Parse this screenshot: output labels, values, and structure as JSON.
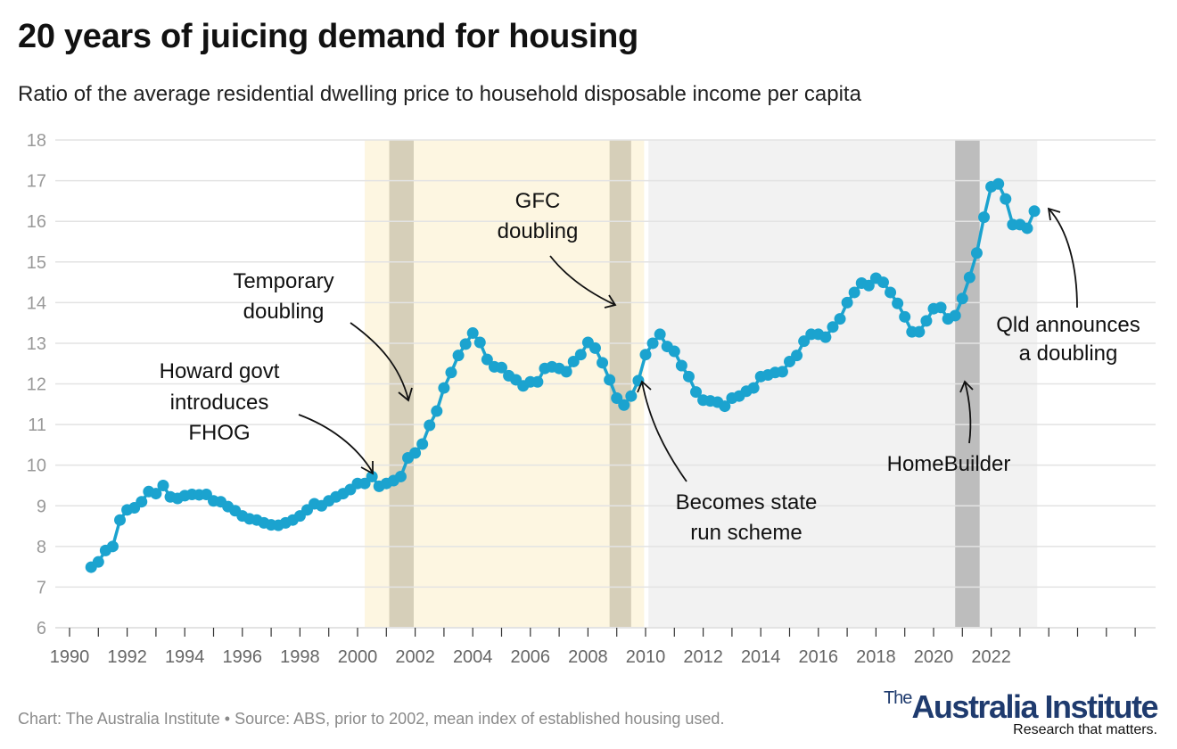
{
  "title": "20 years of juicing demand for housing",
  "subtitle": "Ratio of the average residential dwelling price to household disposable income per capita",
  "footer": "Chart: The Australia Institute  • Source: ABS, prior to 2002, mean index of established housing used.",
  "logo": {
    "the": "The",
    "brand": "Australia Institute",
    "tagline": "Research that matters."
  },
  "colors": {
    "line": "#1ba3cf",
    "fhog_band": "#fdf6e1",
    "doubling_band": "#d6cfb9",
    "state_band": "#f2f2f2",
    "homebuilder_band": "#bdbdbd",
    "grid": "#e3e3e3",
    "tick_label": "#999999"
  },
  "chart_data": {
    "type": "line",
    "title": "20 years of juicing demand for housing",
    "subtitle": "Ratio of the average residential dwelling price to household disposable income per capita",
    "xlim": [
      1989.5,
      2027
    ],
    "ylim": [
      6,
      18
    ],
    "x_ticks": [
      "1990",
      "1992",
      "1994",
      "1996",
      "1998",
      "2000",
      "2002",
      "2004",
      "2006",
      "2008",
      "2010",
      "2012",
      "2014",
      "2016",
      "2018",
      "2020",
      "2022"
    ],
    "y_ticks": [
      "6",
      "7",
      "8",
      "9",
      "10",
      "11",
      "12",
      "13",
      "14",
      "15",
      "16",
      "17",
      "18"
    ],
    "grid": true,
    "markers": true,
    "series": [
      {
        "x_start_label": "1990 Q3",
        "values": [
          7.49,
          7.62,
          7.9,
          8.0,
          8.65,
          8.9,
          8.95,
          9.1,
          9.35,
          9.3,
          9.5,
          9.22,
          9.18,
          9.25,
          9.28,
          9.27,
          9.28,
          9.12,
          9.1,
          8.98,
          8.88,
          8.75,
          8.68,
          8.65,
          8.58,
          8.53,
          8.52,
          8.58,
          8.65,
          8.75,
          8.9,
          9.05,
          9.0,
          9.12,
          9.22,
          9.3,
          9.4,
          9.55,
          9.55,
          9.72,
          9.48,
          9.55,
          9.62,
          9.72,
          10.18,
          10.3,
          10.52,
          10.98,
          11.33,
          11.9,
          12.28,
          12.7,
          12.98,
          13.25,
          13.02,
          12.6,
          12.42,
          12.4,
          12.2,
          12.1,
          11.95,
          12.05,
          12.05,
          12.38,
          12.42,
          12.38,
          12.3,
          12.55,
          12.72,
          13.02,
          12.88,
          12.52,
          12.1,
          11.65,
          11.48,
          11.7,
          12.08,
          12.72,
          13.0,
          13.22,
          12.92,
          12.8,
          12.45,
          12.18,
          11.8,
          11.6,
          11.58,
          11.55,
          11.45,
          11.65,
          11.7,
          11.82,
          11.9,
          12.18,
          12.22,
          12.28,
          12.3,
          12.55,
          12.7,
          13.05,
          13.22,
          13.22,
          13.15,
          13.4,
          13.6,
          14.0,
          14.25,
          14.48,
          14.42,
          14.6,
          14.5,
          14.25,
          13.98,
          13.65,
          13.28,
          13.28,
          13.55,
          13.85,
          13.88,
          13.6,
          13.68,
          14.1,
          14.62,
          15.22,
          16.1,
          16.85,
          16.92,
          16.55,
          15.92,
          15.92,
          15.83,
          16.25
        ]
      }
    ],
    "shaded_periods": [
      {
        "name": "FHOG",
        "from": 2000.25,
        "to": 2009.95,
        "color": "#fdf6e1"
      },
      {
        "name": "Temporary doubling",
        "from": 2001.1,
        "to": 2001.95,
        "color": "#d6cfb9"
      },
      {
        "name": "GFC doubling",
        "from": 2008.75,
        "to": 2009.5,
        "color": "#d6cfb9"
      },
      {
        "name": "State run scheme",
        "from": 2010.1,
        "to": 2023.6,
        "color": "#f2f2f2"
      },
      {
        "name": "HomeBuilder",
        "from": 2020.75,
        "to": 2021.6,
        "color": "#bdbdbd"
      }
    ],
    "annotations": [
      {
        "lines": [
          "Howard govt",
          "introduces",
          "FHOG"
        ]
      },
      {
        "lines": [
          "Temporary",
          "doubling"
        ]
      },
      {
        "lines": [
          "GFC",
          "doubling"
        ]
      },
      {
        "lines": [
          "Becomes state",
          "run scheme"
        ]
      },
      {
        "lines": [
          "HomeBuilder"
        ]
      },
      {
        "lines": [
          "Qld announces",
          "a doubling"
        ]
      }
    ]
  }
}
